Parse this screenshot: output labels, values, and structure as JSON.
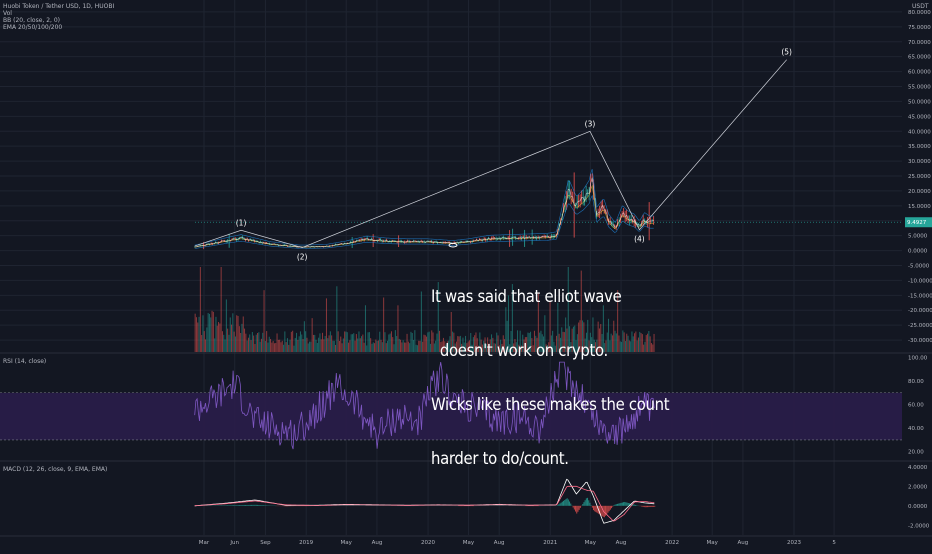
{
  "header": {
    "symbol_line": "Huobi Token / Tether USD, 1D, HUOBI",
    "volume_label": "Vol",
    "bb_label": "BB (20, close, 2, 0)",
    "ema_label": "EMA 20/50/100/200",
    "currency": "USDT"
  },
  "panels": {
    "rsi_label": "RSI (14, close)",
    "macd_label": "MACD (12, 26, close, 9, EMA, EMA)"
  },
  "annotation": {
    "lines": [
      "It was said that elliot wave",
      "  doesn't work on crypto.",
      "Wicks like these makes the count",
      "harder to do/count."
    ]
  },
  "price_tag": "9.4927",
  "colors": {
    "background": "#131722",
    "grid": "#1f2431",
    "axis_text": "#b2b5be",
    "rsi": "#7e57c2",
    "rsi_band": "#2a1d4a",
    "wave_line": "#d1d4dc",
    "up": "#26a69a",
    "down": "#ef5350",
    "price_tag": "#26a69a"
  },
  "chart_data": [
    {
      "type": "line",
      "name": "price",
      "y_scale": "linear",
      "ylim": [
        -34,
        84
      ],
      "yticks": [
        80,
        75,
        70,
        65,
        60,
        55,
        50,
        45,
        40,
        35,
        30,
        25,
        20,
        15,
        10,
        5,
        0,
        -5,
        -10,
        -15,
        -20,
        -25,
        -30
      ],
      "ytick_labels": [
        "80.0000",
        "75.0000",
        "70.0000",
        "65.0000",
        "60.0000",
        "55.0000",
        "50.0000",
        "45.0000",
        "40.0000",
        "35.0000",
        "30.0000",
        "25.0000",
        "20.0000",
        "15.0000",
        "10.0000",
        "5.0000",
        "0.0000",
        "-5.0000",
        "-10.0000",
        "-15.0000",
        "-20.0000",
        "-25.0000",
        "-30.0000"
      ],
      "xticks": [
        "Mar",
        "Jun",
        "Sep",
        "2019",
        "May",
        "Aug",
        "2020",
        "May",
        "Aug",
        "2021",
        "May",
        "Aug",
        "2022",
        "May",
        "Aug",
        "2023",
        "5"
      ],
      "xtick_dates": [
        "2018-03-01",
        "2018-06-01",
        "2018-09-01",
        "2019-01-01",
        "2019-05-01",
        "2019-08-01",
        "2020-01-01",
        "2020-05-01",
        "2020-08-01",
        "2021-01-01",
        "2021-05-01",
        "2021-08-01",
        "2022-01-01",
        "2022-05-01",
        "2022-08-01",
        "2023-01-01",
        "2023-05-01"
      ],
      "price_series": {
        "dates": [
          "2018-02-01",
          "2018-04-01",
          "2018-05-15",
          "2018-06-20",
          "2018-09-15",
          "2018-12-15",
          "2019-03-01",
          "2019-05-01",
          "2019-07-01",
          "2019-09-01",
          "2019-11-01",
          "2020-01-01",
          "2020-03-15",
          "2020-05-01",
          "2020-07-01",
          "2020-09-01",
          "2020-11-01",
          "2020-12-20",
          "2021-01-20",
          "2021-02-10",
          "2021-02-25",
          "2021-03-20",
          "2021-04-10",
          "2021-04-30",
          "2021-05-05",
          "2021-05-20",
          "2021-06-10",
          "2021-06-25",
          "2021-07-15",
          "2021-08-05",
          "2021-08-20",
          "2021-09-10",
          "2021-09-25",
          "2021-10-10",
          "2021-10-25",
          "2021-11-10"
        ],
        "values": [
          1.2,
          2.5,
          3.5,
          4.2,
          2.2,
          1.2,
          1.4,
          2.4,
          3.8,
          3.2,
          3.0,
          3.0,
          2.5,
          3.0,
          4.0,
          4.2,
          4.4,
          4.5,
          5.0,
          14.0,
          20.0,
          15.0,
          17.0,
          20.0,
          24.0,
          12.0,
          14.5,
          10.0,
          7.5,
          12.5,
          11.0,
          10.0,
          8.0,
          10.5,
          9.5,
          9.5
        ]
      },
      "wave_points": [
        {
          "label": "(1)",
          "date": "2018-06-20",
          "value": 6.8
        },
        {
          "label": "(2)",
          "date": "2018-12-20",
          "value": 1.0
        },
        {
          "label": "(3)",
          "date": "2021-04-30",
          "value": 40.0
        },
        {
          "label": "(4)",
          "date": "2021-09-25",
          "value": 7.0
        },
        {
          "label": "(5)",
          "date": "2022-12-10",
          "value": 64.0
        }
      ]
    },
    {
      "type": "line",
      "name": "RSI (14, close)",
      "ylim": [
        13,
        102
      ],
      "yticks": [
        100,
        80,
        60,
        40,
        20
      ],
      "ytick_labels": [
        "100.00",
        "80.00",
        "60.00",
        "40.00",
        "20.00"
      ],
      "band": [
        30,
        70
      ],
      "dates": [
        "2018-02-01",
        "2018-04-01",
        "2018-06-01",
        "2018-08-01",
        "2018-10-01",
        "2018-12-01",
        "2019-02-01",
        "2019-04-01",
        "2019-06-01",
        "2019-08-01",
        "2019-10-01",
        "2019-12-01",
        "2020-02-01",
        "2020-04-01",
        "2020-06-01",
        "2020-08-01",
        "2020-10-01",
        "2020-12-01",
        "2021-02-01",
        "2021-04-01",
        "2021-06-01",
        "2021-08-01",
        "2021-10-01",
        "2021-11-10"
      ],
      "values": [
        55,
        65,
        78,
        45,
        40,
        35,
        55,
        75,
        60,
        35,
        50,
        45,
        85,
        60,
        55,
        45,
        50,
        40,
        90,
        70,
        40,
        35,
        60,
        50
      ]
    },
    {
      "type": "line",
      "name": "MACD (12, 26, close, 9, EMA, EMA)",
      "ylim": [
        -3,
        4.5
      ],
      "yticks": [
        4,
        2,
        0,
        -2
      ],
      "ytick_labels": [
        "4.0000",
        "2.0000",
        "0.0000",
        "-2.0000"
      ],
      "dates": [
        "2018-02-01",
        "2018-05-01",
        "2018-08-01",
        "2018-11-01",
        "2019-02-01",
        "2019-05-01",
        "2019-08-01",
        "2019-11-01",
        "2020-02-01",
        "2020-05-01",
        "2020-08-01",
        "2020-11-01",
        "2021-01-20",
        "2021-02-20",
        "2021-03-20",
        "2021-04-20",
        "2021-05-10",
        "2021-06-10",
        "2021-07-10",
        "2021-08-10",
        "2021-09-10",
        "2021-10-10",
        "2021-11-10"
      ],
      "macd": [
        0,
        0.25,
        0.6,
        0.05,
        0.05,
        0.15,
        0.1,
        0.05,
        0.1,
        0.05,
        0.15,
        0.05,
        0.1,
        2.8,
        1.2,
        2.5,
        1.0,
        -1.8,
        -1.5,
        -0.5,
        0.5,
        0.3,
        0.2
      ],
      "signal": [
        0,
        0.2,
        0.5,
        0.1,
        0.03,
        0.1,
        0.08,
        0.05,
        0.08,
        0.06,
        0.1,
        0.06,
        0.08,
        2.0,
        2.0,
        1.6,
        1.5,
        -0.6,
        -1.6,
        -0.9,
        0.4,
        0.45,
        0.3
      ]
    }
  ]
}
